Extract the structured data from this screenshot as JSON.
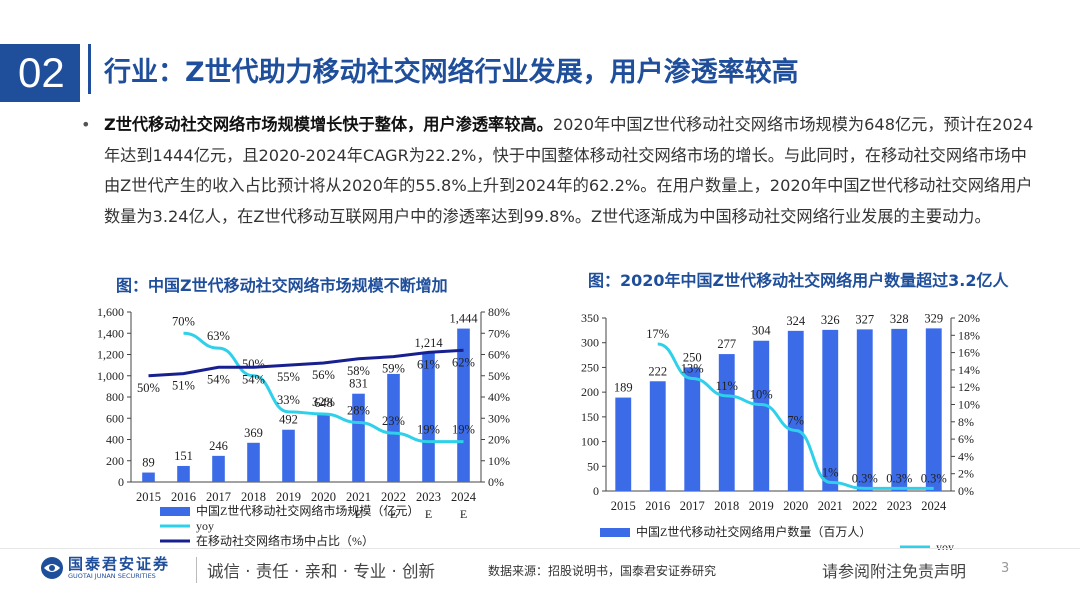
{
  "header": {
    "section_number": "02",
    "title": "行业：Z世代助力移动社交网络行业发展，用户渗透率较高"
  },
  "body": {
    "bullet": "•",
    "bold_lead": "Z世代移动社交网络市场规模增长快于整体，用户渗透率较高。",
    "text": "2020年中国Z世代移动社交网络市场规模为648亿元，预计在2024年达到1444亿元，且2020-2024年CAGR为22.2%，快于中国整体移动社交网络市场的增长。与此同时，在移动社交网络市场中由Z世代产生的收入占比预计将从2020年的55.8%上升到2024年的62.2%。在用户数量上，2020年中国Z世代移动社交网络用户数量为3.24亿人，在Z世代移动互联网用户中的渗透率达到99.8%。Z世代逐渐成为中国移动社交网络行业发展的主要动力。"
  },
  "figures": {
    "left_caption": "图：中国Z世代移动社交网络市场规模不断增加",
    "right_caption": "图：2020年中国Z世代移动社交网络用户数量超过3.2亿人"
  },
  "chart_data": [
    {
      "type": "bar",
      "title": "图：中国Z世代移动社交网络市场规模不断增加",
      "categories": [
        "2015",
        "2016",
        "2017",
        "2018",
        "2019",
        "2020",
        "2021E",
        "2022E",
        "2023E",
        "2024E"
      ],
      "bar_series": {
        "name": "中国Z世代移动社交网络市场规模（亿元）",
        "values": [
          89,
          151,
          246,
          369,
          492,
          648,
          831,
          1017,
          1214,
          1444
        ],
        "labels": [
          "89",
          "151",
          "246",
          "369",
          "492",
          "648",
          "831",
          "",
          "1,214",
          "1,444"
        ]
      },
      "line_series": [
        {
          "name": "yoy",
          "values": [
            null,
            70,
            63,
            50,
            33,
            32,
            28,
            23,
            19,
            19
          ],
          "labels": [
            "",
            "70%",
            "63%",
            "50%",
            "33%",
            "32%",
            "28%",
            "23%",
            "19%",
            "19%"
          ]
        },
        {
          "name": "在移动社交网络市场中占比（%）",
          "values": [
            50,
            51,
            54,
            54,
            55,
            56,
            58,
            59,
            61,
            62
          ],
          "labels": [
            "50%",
            "51%",
            "54%",
            "54%",
            "55%",
            "56%",
            "58%",
            "59%",
            "61%",
            "62%"
          ]
        }
      ],
      "y_left": {
        "min": 0,
        "max": 1600,
        "ticks": [
          "0",
          "200",
          "400",
          "600",
          "800",
          "1,000",
          "1,200",
          "1,400",
          "1,600"
        ]
      },
      "y_right": {
        "min": 0,
        "max": 80,
        "ticks": [
          "0%",
          "10%",
          "20%",
          "30%",
          "40%",
          "50%",
          "60%",
          "70%",
          "80%"
        ]
      },
      "colors": {
        "bar": "#3c6be8",
        "yoy": "#2ed0ea",
        "share": "#18208f"
      }
    },
    {
      "type": "bar",
      "title": "图：2020年中国Z世代移动社交网络用户数量超过3.2亿人",
      "categories": [
        "2015",
        "2016",
        "2017",
        "2018",
        "2019",
        "2020",
        "2021E",
        "2022E",
        "2023E",
        "2024E"
      ],
      "bar_series": {
        "name": "中国Z世代移动社交网络用户数量（百万人）",
        "values": [
          189,
          222,
          250,
          277,
          304,
          324,
          326,
          327,
          328,
          329
        ],
        "labels": [
          "189",
          "222",
          "250",
          "277",
          "304",
          "324",
          "326",
          "327",
          "328",
          "329"
        ]
      },
      "line_series": [
        {
          "name": "yoy",
          "values": [
            null,
            17,
            13,
            11,
            10,
            7,
            1,
            0.3,
            0.3,
            0.3
          ],
          "labels": [
            "",
            "17%",
            "13%",
            "11%",
            "10%",
            "7%",
            "1%",
            "0.3%",
            "0.3%",
            "0.3%"
          ]
        }
      ],
      "y_left": {
        "min": 0,
        "max": 350,
        "ticks": [
          "0",
          "50",
          "100",
          "150",
          "200",
          "250",
          "300",
          "350"
        ]
      },
      "y_right": {
        "min": 0,
        "max": 20,
        "ticks": [
          "0%",
          "2%",
          "4%",
          "6%",
          "8%",
          "10%",
          "12%",
          "14%",
          "16%",
          "18%",
          "20%"
        ]
      },
      "colors": {
        "bar": "#3c6be8",
        "yoy": "#2ed0ea"
      }
    }
  ],
  "footer": {
    "logo_name": "国泰君安证券",
    "logo_sub": "GUOTAI JUNAN SECURITIES",
    "slogan": "诚信 · 责任 · 亲和 · 专业 · 创新",
    "source": "数据来源：招股说明书，国泰君安证券研究",
    "disclaimer": "请参阅附注免责声明",
    "page_number": "3"
  }
}
